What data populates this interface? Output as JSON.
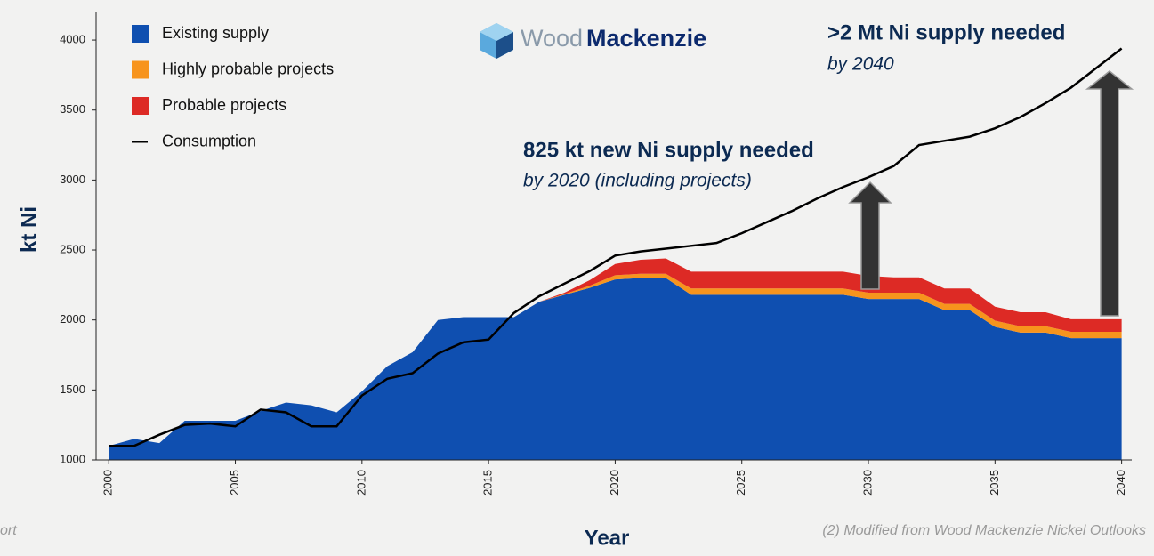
{
  "chart_data": {
    "type": "area",
    "x_label": "Year",
    "y_label": "kt Ni",
    "x": [
      2000,
      2001,
      2002,
      2003,
      2004,
      2005,
      2006,
      2007,
      2008,
      2009,
      2010,
      2011,
      2012,
      2013,
      2014,
      2015,
      2016,
      2017,
      2018,
      2019,
      2020,
      2021,
      2022,
      2023,
      2024,
      2025,
      2026,
      2027,
      2028,
      2029,
      2030,
      2031,
      2032,
      2033,
      2034,
      2035,
      2036,
      2037,
      2038,
      2039,
      2040
    ],
    "series": [
      {
        "name": "Existing supply",
        "color": "#0f4fb0",
        "values": [
          1100,
          1150,
          1120,
          1280,
          1280,
          1280,
          1350,
          1410,
          1390,
          1340,
          1490,
          1670,
          1770,
          2000,
          2020,
          2020,
          2020,
          2130,
          2180,
          2230,
          2290,
          2300,
          2300,
          2180,
          2180,
          2180,
          2180,
          2180,
          2180,
          2180,
          2150,
          2150,
          2150,
          2070,
          2070,
          1950,
          1910,
          1910,
          1870,
          1870,
          1870
        ]
      },
      {
        "name": "Highly probable projects",
        "color": "#f7941d",
        "values": [
          0,
          0,
          0,
          0,
          0,
          0,
          0,
          0,
          0,
          0,
          0,
          0,
          0,
          0,
          0,
          0,
          0,
          0,
          5,
          15,
          30,
          30,
          30,
          45,
          45,
          45,
          45,
          45,
          45,
          45,
          45,
          45,
          45,
          45,
          45,
          45,
          45,
          45,
          45,
          45,
          45
        ]
      },
      {
        "name": "Probable projects",
        "color": "#dd2a25",
        "values": [
          0,
          0,
          0,
          0,
          0,
          0,
          0,
          0,
          0,
          0,
          0,
          0,
          0,
          0,
          0,
          0,
          0,
          0,
          10,
          40,
          80,
          100,
          110,
          120,
          120,
          120,
          120,
          120,
          120,
          120,
          120,
          110,
          110,
          110,
          110,
          100,
          100,
          100,
          90,
          90,
          90
        ]
      },
      {
        "name": "Consumption",
        "color": "#000000",
        "type": "line",
        "values": [
          1100,
          1100,
          1180,
          1250,
          1260,
          1240,
          1360,
          1340,
          1240,
          1240,
          1460,
          1580,
          1620,
          1760,
          1840,
          1860,
          2050,
          2170,
          2260,
          2350,
          2460,
          2490,
          2510,
          2530,
          2550,
          2620,
          2700,
          2780,
          2870,
          2950,
          3020,
          3100,
          3250,
          3280,
          3310,
          3370,
          3450,
          3550,
          3660,
          3800,
          3940
        ]
      }
    ],
    "xlim": [
      1999.5,
      2040.4
    ],
    "xticks": [
      2000,
      2005,
      2010,
      2015,
      2020,
      2025,
      2030,
      2035,
      2040
    ],
    "ylim": [
      1000,
      4200
    ],
    "yticks": [
      1000,
      1500,
      2000,
      2500,
      3000,
      3500,
      4000
    ],
    "annotations": [
      {
        "title": "825 kt new Ni supply needed",
        "subtitle": "by 2020 (including projects)"
      },
      {
        "title": ">2 Mt Ni supply needed",
        "subtitle": "by 2040"
      }
    ],
    "logo": [
      "Wood",
      "Mackenzie"
    ],
    "footnotes": [
      "ort",
      "(2) Modified from Wood Mackenzie Nickel Outlooks"
    ]
  }
}
